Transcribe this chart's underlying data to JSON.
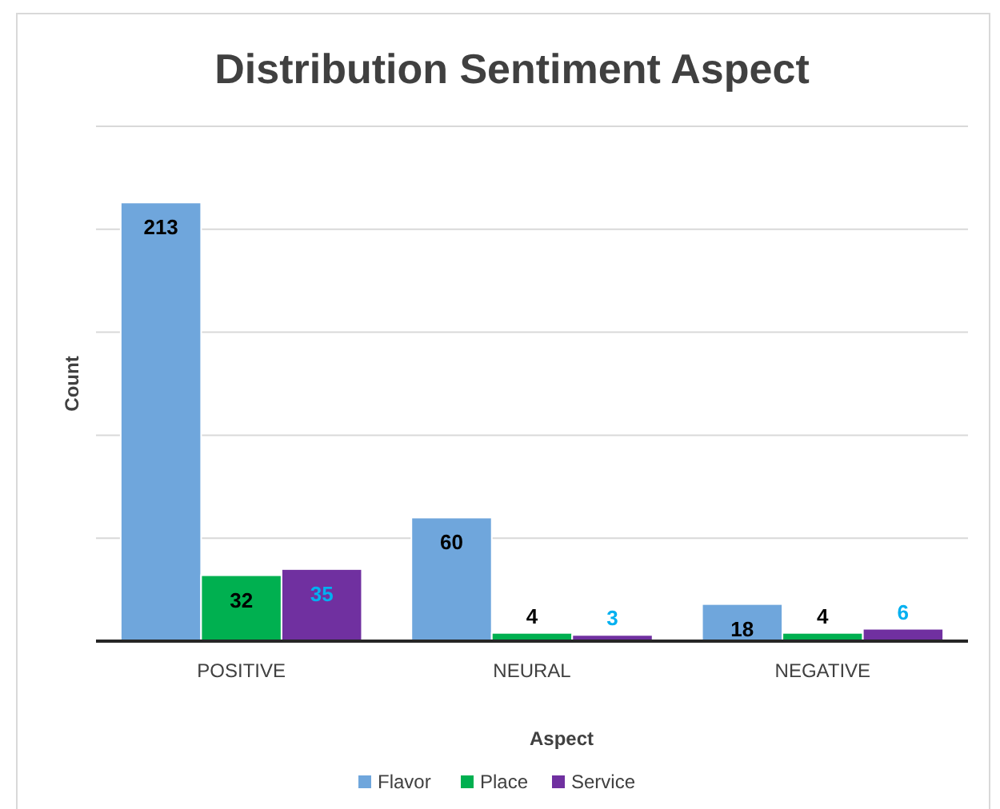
{
  "chart_data": {
    "type": "bar",
    "title": "Distribution Sentiment Aspect",
    "xlabel": "Aspect",
    "ylabel": "Count",
    "categories": [
      "POSITIVE",
      "NEURAL",
      "NEGATIVE"
    ],
    "series": [
      {
        "name": "Flavor",
        "color": "#6fa6dc",
        "values": [
          213,
          60,
          18
        ]
      },
      {
        "name": "Place",
        "color": "#00b050",
        "values": [
          32,
          4,
          4
        ]
      },
      {
        "name": "Service",
        "color": "#7030a0",
        "values": [
          35,
          3,
          6
        ]
      }
    ],
    "ylim": [
      0,
      250
    ],
    "yticks": [
      {
        "value": 0,
        "label": null
      },
      {
        "value": 50,
        "label": null
      },
      {
        "value": 100,
        "label": null
      },
      {
        "value": 150,
        "label": null
      },
      {
        "value": 200,
        "label": null
      },
      {
        "value": 250,
        "label": null
      }
    ],
    "grid": "y",
    "legend": "bottom",
    "data_labels": true
  }
}
